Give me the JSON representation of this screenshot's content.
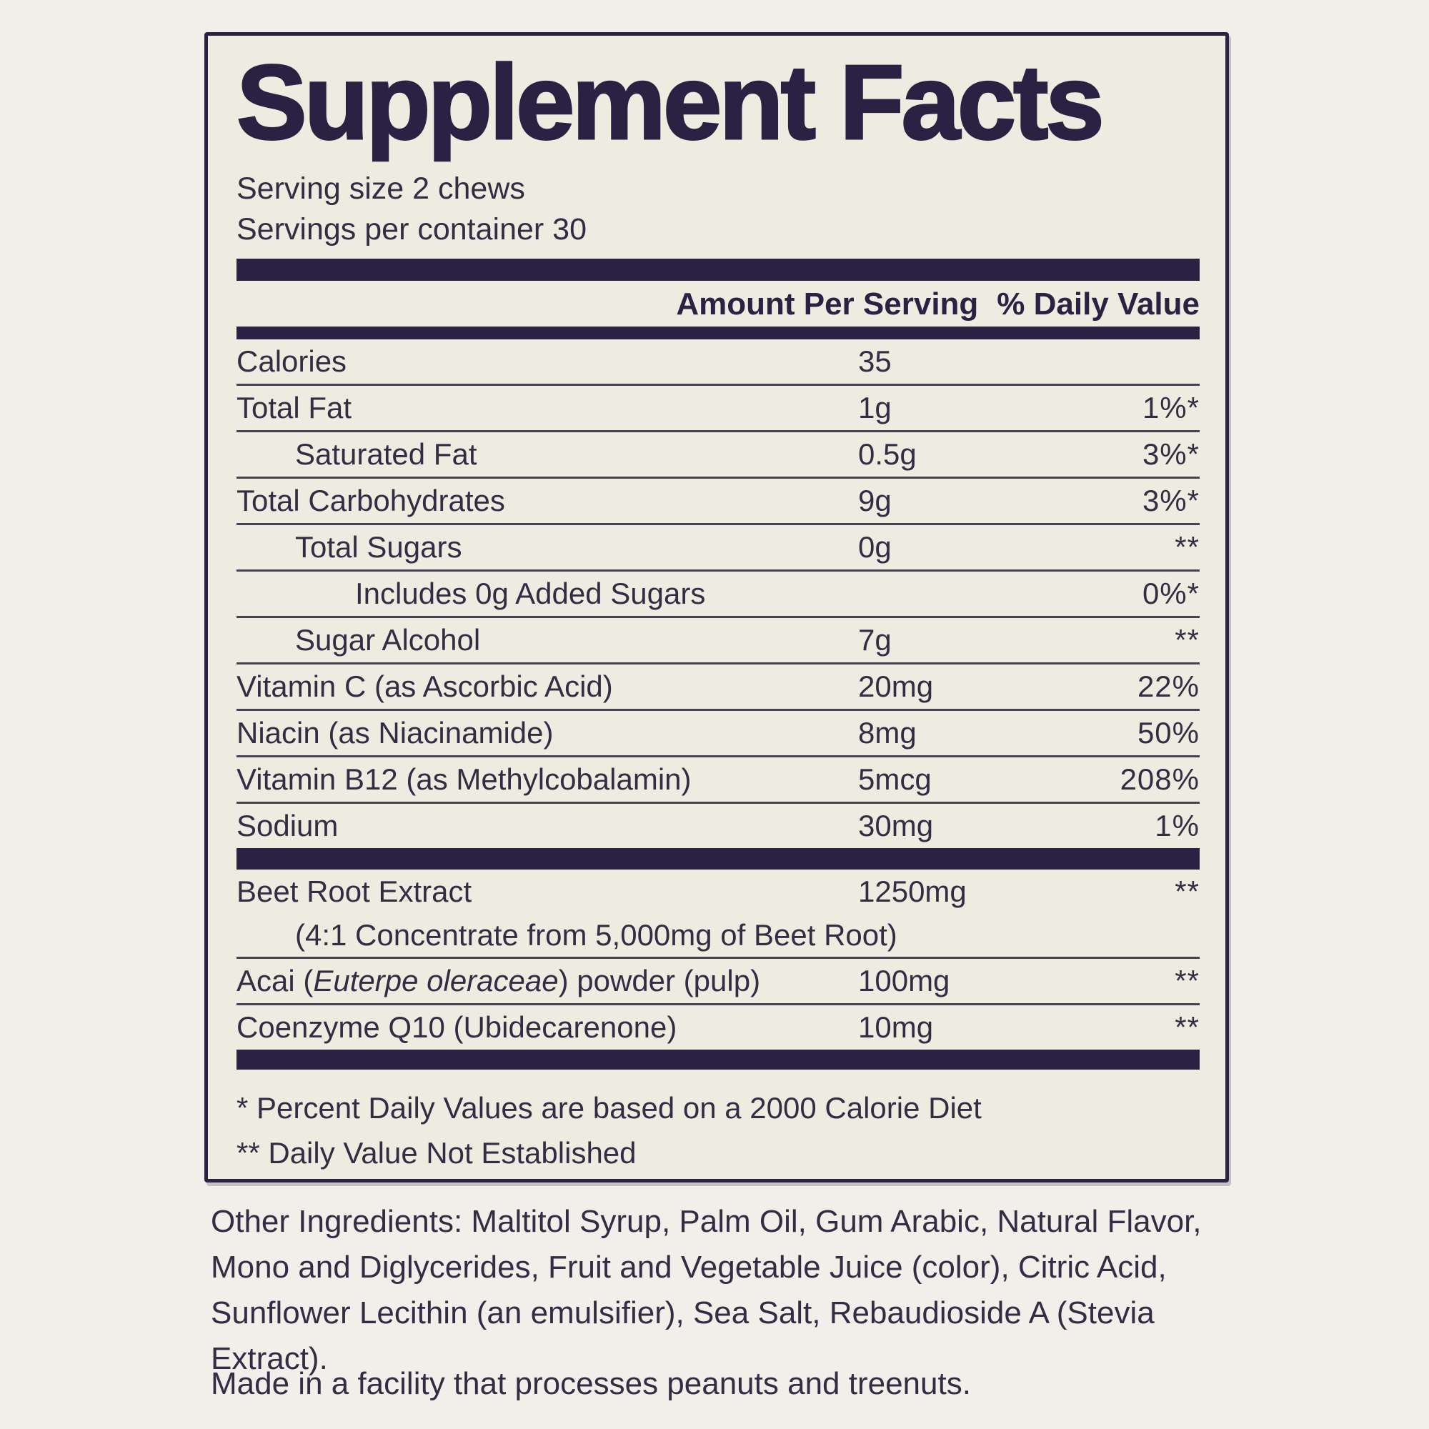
{
  "title": "Supplement Facts",
  "serving": {
    "size_line": "Serving size 2 chews",
    "per_container_line": "Servings per container 30"
  },
  "columns": {
    "amount_header": "Amount Per Serving",
    "dv_header": "% Daily Value"
  },
  "table": {
    "rows": [
      {
        "name": "Calories",
        "amount": "35",
        "dv": "",
        "indent": 0
      },
      {
        "name": "Total Fat",
        "amount": "1g",
        "dv": "1%*",
        "indent": 0
      },
      {
        "name": "Saturated Fat",
        "amount": "0.5g",
        "dv": "3%*",
        "indent": 1
      },
      {
        "name": "Total Carbohydrates",
        "amount": "9g",
        "dv": "3%*",
        "indent": 0
      },
      {
        "name": "Total Sugars",
        "amount": "0g",
        "dv": "**",
        "indent": 1
      },
      {
        "name": "Includes 0g Added Sugars",
        "amount": "",
        "dv": "0%*",
        "indent": 2
      },
      {
        "name": "Sugar Alcohol",
        "amount": "7g",
        "dv": "**",
        "indent": 1
      },
      {
        "name": "Vitamin C (as Ascorbic Acid)",
        "amount": "20mg",
        "dv": "22%",
        "indent": 0
      },
      {
        "name": "Niacin (as Niacinamide)",
        "amount": "8mg",
        "dv": "50%",
        "indent": 0
      },
      {
        "name": "Vitamin B12 (as Methylcobalamin)",
        "amount": "5mcg",
        "dv": "208%",
        "indent": 0
      },
      {
        "name": "Sodium",
        "amount": "30mg",
        "dv": "1%",
        "indent": 0
      }
    ],
    "botanical_rows": [
      {
        "name": "Beet Root Extract",
        "amount": "1250mg",
        "dv": "**",
        "indent": 0,
        "subline": "(4:1 Concentrate from 5,000mg of Beet Root)"
      },
      {
        "name_parts": [
          {
            "t": "Acai ("
          },
          {
            "t": "Euterpe oleraceae",
            "i": true
          },
          {
            "t": ") powder (pulp)"
          }
        ],
        "amount": "100mg",
        "dv": "**",
        "indent": 0
      },
      {
        "name": "Coenzyme Q10 (Ubidecarenone)",
        "amount": "10mg",
        "dv": "**",
        "indent": 0
      }
    ]
  },
  "footnotes": {
    "dv_basis": "* Percent Daily Values are based on a 2000 Calorie Diet",
    "not_established": "** Daily Value Not Established"
  },
  "other_ingredients": {
    "lines": [
      "Other Ingredients: Maltitol Syrup, Palm Oil, Gum Arabic, Natural Flavor,",
      "Mono and Diglycerides, Fruit and Vegetable Juice (color), Citric Acid,",
      "Sunflower Lecithin (an emulsifier), Sea Salt, Rebaudioside A (Stevia Extract)."
    ]
  },
  "allergen_statement": "Made in a facility that processes peanuts and treenuts.",
  "colors": {
    "ink": "#2b2142",
    "text": "#332d44",
    "rule": "#474253",
    "label_bg": "#edece1",
    "page_bg": "#f0efe9"
  }
}
